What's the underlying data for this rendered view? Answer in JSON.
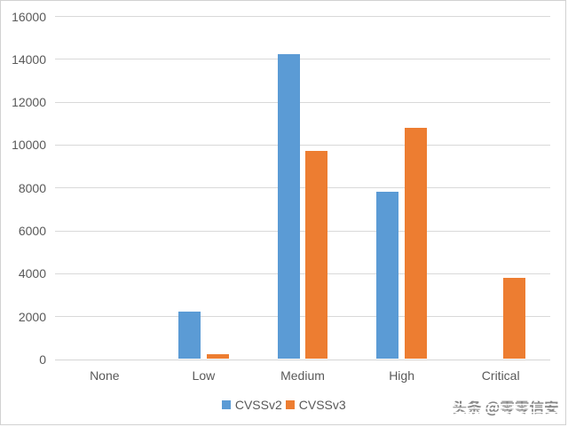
{
  "chart_data": {
    "type": "bar",
    "title": "",
    "xlabel": "",
    "ylabel": "",
    "categories": [
      "None",
      "Low",
      "Medium",
      "High",
      "Critical"
    ],
    "series": [
      {
        "name": "CVSSv2",
        "color": "#5b9bd5",
        "values": [
          0,
          2200,
          14200,
          7800,
          0
        ]
      },
      {
        "name": "CVSSv3",
        "color": "#ed7d31",
        "values": [
          0,
          230,
          9700,
          10800,
          3800
        ]
      }
    ],
    "ylim": [
      0,
      16000
    ],
    "yticks": [
      0,
      2000,
      4000,
      6000,
      8000,
      10000,
      12000,
      14000,
      16000
    ],
    "grid": "horizontal",
    "legend_position": "bottom-center"
  },
  "watermark": {
    "text": "头条 @零零信安"
  },
  "colors": {
    "background": "#ffffff",
    "gridline": "#d9d9d9",
    "axis_text": "#595959",
    "frame_border": "#d2d2d2",
    "series_cvssv2": "#5b9bd5",
    "series_cvssv3": "#ed7d31",
    "watermark_gray": "#868686"
  }
}
